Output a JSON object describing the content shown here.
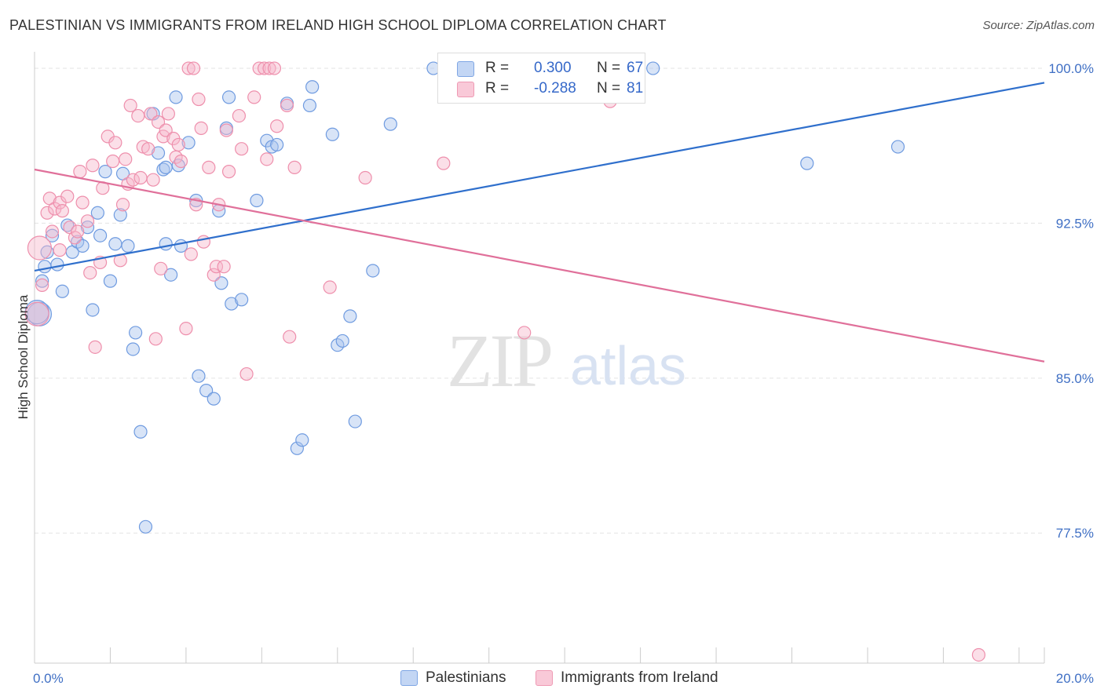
{
  "title": "PALESTINIAN VS IMMIGRANTS FROM IRELAND HIGH SCHOOL DIPLOMA CORRELATION CHART",
  "source": "Source: ZipAtlas.com",
  "watermark": {
    "zip": "ZIP",
    "atlas": "atlas"
  },
  "legend": {
    "rows": [
      {
        "r_label": "R =",
        "r_value": "0.300",
        "n_label": "N =",
        "n_value": "67",
        "color": "#a9c4ee",
        "stroke": "#6f9be0"
      },
      {
        "r_label": "R =",
        "r_value": "-0.288",
        "n_label": "N =",
        "n_value": "81",
        "color": "#f7b8cc",
        "stroke": "#ee8fac"
      }
    ]
  },
  "bottom_legend": {
    "series1": "Palestinians",
    "series2": "Immigrants from Ireland"
  },
  "chart_data": {
    "type": "scatter",
    "title": "PALESTINIAN VS IMMIGRANTS FROM IRELAND HIGH SCHOOL DIPLOMA CORRELATION CHART",
    "xlabel": "",
    "ylabel": "High School Diploma",
    "xlim": [
      0,
      20
    ],
    "ylim": [
      71.2,
      100.8
    ],
    "x_tick_labels": [
      {
        "value": 0,
        "label": "0.0%"
      },
      {
        "value": 20,
        "label": "20.0%"
      }
    ],
    "y_tick_labels": [
      {
        "value": 100,
        "label": "100.0%"
      },
      {
        "value": 92.5,
        "label": "92.5%"
      },
      {
        "value": 85,
        "label": "85.0%"
      },
      {
        "value": 77.5,
        "label": "77.5%"
      }
    ],
    "grid": true,
    "series": [
      {
        "name": "Palestinians",
        "color": "#6f9be0",
        "fill": "#a9c4ee",
        "line_color": "#2f6fcc",
        "trend": {
          "x": [
            0,
            20
          ],
          "y": [
            90.2,
            99.3
          ]
        },
        "points": [
          [
            0.1,
            88.1
          ],
          [
            0.15,
            89.7
          ],
          [
            0.2,
            90.4
          ],
          [
            0.25,
            91.1
          ],
          [
            0.35,
            91.9
          ],
          [
            0.45,
            90.5
          ],
          [
            0.55,
            89.2
          ],
          [
            0.65,
            92.4
          ],
          [
            0.75,
            91.1
          ],
          [
            0.85,
            91.6
          ],
          [
            0.95,
            91.4
          ],
          [
            1.05,
            92.3
          ],
          [
            1.15,
            88.3
          ],
          [
            1.25,
            93.0
          ],
          [
            1.3,
            91.9
          ],
          [
            1.4,
            95.0
          ],
          [
            1.5,
            89.7
          ],
          [
            1.6,
            91.5
          ],
          [
            1.7,
            92.9
          ],
          [
            1.75,
            94.9
          ],
          [
            1.85,
            91.4
          ],
          [
            1.95,
            86.4
          ],
          [
            2.0,
            87.2
          ],
          [
            2.1,
            82.4
          ],
          [
            2.2,
            77.8
          ],
          [
            2.35,
            97.8
          ],
          [
            2.45,
            95.9
          ],
          [
            2.55,
            95.1
          ],
          [
            2.6,
            95.2
          ],
          [
            2.6,
            91.5
          ],
          [
            2.7,
            90.0
          ],
          [
            2.8,
            98.6
          ],
          [
            2.85,
            95.3
          ],
          [
            2.9,
            91.4
          ],
          [
            3.05,
            96.4
          ],
          [
            3.2,
            93.6
          ],
          [
            3.25,
            85.1
          ],
          [
            3.4,
            84.4
          ],
          [
            3.55,
            84.0
          ],
          [
            3.65,
            93.1
          ],
          [
            3.7,
            89.6
          ],
          [
            3.8,
            97.1
          ],
          [
            3.85,
            98.6
          ],
          [
            3.9,
            88.6
          ],
          [
            4.1,
            88.8
          ],
          [
            4.4,
            93.6
          ],
          [
            4.6,
            96.5
          ],
          [
            4.7,
            96.2
          ],
          [
            4.8,
            96.3
          ],
          [
            5.0,
            98.3
          ],
          [
            5.2,
            81.6
          ],
          [
            5.3,
            82.0
          ],
          [
            5.45,
            98.2
          ],
          [
            5.5,
            99.1
          ],
          [
            5.9,
            96.8
          ],
          [
            6.0,
            86.6
          ],
          [
            6.1,
            86.8
          ],
          [
            6.25,
            88.0
          ],
          [
            6.35,
            82.9
          ],
          [
            6.7,
            90.2
          ],
          [
            7.05,
            97.3
          ],
          [
            7.9,
            100.0
          ],
          [
            12.25,
            100.0
          ],
          [
            15.3,
            95.4
          ],
          [
            17.1,
            96.2
          ],
          [
            11.1,
            100.0
          ],
          [
            0.05,
            88.2
          ]
        ]
      },
      {
        "name": "Immigrants from Ireland",
        "color": "#ee8fac",
        "fill": "#f7b8cc",
        "line_color": "#e0709a",
        "trend": {
          "x": [
            0,
            20
          ],
          "y": [
            95.1,
            85.8
          ]
        },
        "points": [
          [
            0.05,
            88.1
          ],
          [
            0.1,
            91.3
          ],
          [
            0.15,
            89.5
          ],
          [
            0.25,
            93.0
          ],
          [
            0.3,
            93.7
          ],
          [
            0.35,
            92.1
          ],
          [
            0.4,
            93.2
          ],
          [
            0.5,
            93.5
          ],
          [
            0.55,
            93.1
          ],
          [
            0.65,
            93.8
          ],
          [
            0.7,
            92.3
          ],
          [
            0.8,
            91.8
          ],
          [
            0.85,
            92.1
          ],
          [
            0.9,
            95.0
          ],
          [
            0.95,
            93.5
          ],
          [
            1.05,
            92.6
          ],
          [
            1.1,
            90.1
          ],
          [
            1.15,
            95.3
          ],
          [
            1.2,
            86.5
          ],
          [
            1.3,
            90.6
          ],
          [
            1.35,
            94.2
          ],
          [
            1.45,
            96.7
          ],
          [
            1.55,
            95.5
          ],
          [
            1.6,
            96.4
          ],
          [
            1.7,
            90.7
          ],
          [
            1.75,
            93.4
          ],
          [
            1.8,
            95.6
          ],
          [
            1.85,
            94.4
          ],
          [
            1.9,
            98.2
          ],
          [
            1.95,
            94.6
          ],
          [
            2.05,
            97.7
          ],
          [
            2.1,
            94.7
          ],
          [
            2.15,
            96.2
          ],
          [
            2.25,
            96.1
          ],
          [
            2.3,
            97.8
          ],
          [
            2.35,
            94.6
          ],
          [
            2.4,
            86.9
          ],
          [
            2.45,
            97.4
          ],
          [
            2.5,
            90.3
          ],
          [
            2.55,
            96.7
          ],
          [
            2.6,
            97.0
          ],
          [
            2.65,
            97.8
          ],
          [
            2.75,
            96.6
          ],
          [
            2.8,
            95.7
          ],
          [
            2.85,
            96.3
          ],
          [
            2.9,
            95.5
          ],
          [
            3.0,
            87.4
          ],
          [
            3.05,
            100.0
          ],
          [
            3.1,
            91.0
          ],
          [
            3.15,
            100.0
          ],
          [
            3.2,
            93.4
          ],
          [
            3.25,
            98.5
          ],
          [
            3.3,
            97.1
          ],
          [
            3.35,
            91.6
          ],
          [
            3.45,
            95.2
          ],
          [
            3.55,
            90.0
          ],
          [
            3.6,
            90.4
          ],
          [
            3.65,
            93.4
          ],
          [
            3.75,
            90.4
          ],
          [
            3.8,
            97.0
          ],
          [
            3.85,
            95.0
          ],
          [
            4.05,
            97.7
          ],
          [
            4.1,
            96.1
          ],
          [
            4.2,
            85.2
          ],
          [
            4.35,
            98.6
          ],
          [
            4.45,
            100.0
          ],
          [
            4.55,
            100.0
          ],
          [
            4.6,
            95.6
          ],
          [
            4.65,
            100.0
          ],
          [
            4.75,
            100.0
          ],
          [
            4.8,
            97.2
          ],
          [
            5.0,
            98.2
          ],
          [
            5.05,
            87.0
          ],
          [
            5.15,
            95.2
          ],
          [
            5.85,
            89.4
          ],
          [
            6.55,
            94.7
          ],
          [
            8.1,
            95.4
          ],
          [
            9.7,
            87.2
          ],
          [
            11.4,
            98.4
          ],
          [
            18.7,
            71.6
          ],
          [
            0.5,
            91.2
          ]
        ]
      }
    ]
  }
}
